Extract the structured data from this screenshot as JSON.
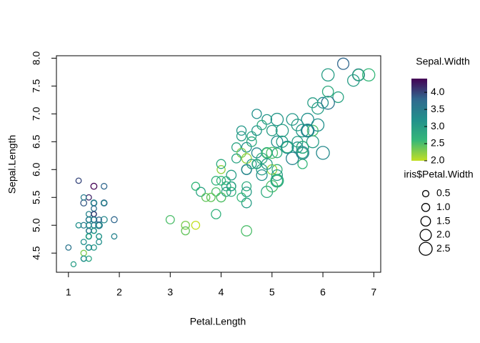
{
  "chart_data": {
    "type": "scatter",
    "xlabel": "Petal.Length",
    "ylabel": "Sepal.Length",
    "xlim": [
      0.764,
      7.136
    ],
    "ylim": [
      4.156,
      8.044
    ],
    "xticks": [
      1,
      2,
      3,
      4,
      5,
      6,
      7
    ],
    "yticks": [
      4.5,
      {
        "value": 5,
        "label": "5.0"
      },
      5.5,
      {
        "value": 6,
        "label": "6.0"
      },
      6.5,
      {
        "value": 7,
        "label": "7.0"
      },
      7.5,
      {
        "value": 8,
        "label": "8.0"
      }
    ],
    "x": [
      1.4,
      1.4,
      1.3,
      1.5,
      1.4,
      1.7,
      1.4,
      1.5,
      1.4,
      1.5,
      1.5,
      1.6,
      1.4,
      1.1,
      1.2,
      1.5,
      1.3,
      1.4,
      1.7,
      1.5,
      1.7,
      1.5,
      1.0,
      1.7,
      1.9,
      1.6,
      1.6,
      1.5,
      1.4,
      1.6,
      1.6,
      1.5,
      1.5,
      1.4,
      1.5,
      1.2,
      1.3,
      1.4,
      1.3,
      1.5,
      1.3,
      1.3,
      1.3,
      1.6,
      1.9,
      1.4,
      1.6,
      1.4,
      1.5,
      1.4,
      4.7,
      4.5,
      4.9,
      4.0,
      4.6,
      4.5,
      4.7,
      3.3,
      4.6,
      3.9,
      3.5,
      4.2,
      4.0,
      4.7,
      3.6,
      4.4,
      4.5,
      4.1,
      4.5,
      3.9,
      4.8,
      4.0,
      4.9,
      4.7,
      4.3,
      4.4,
      4.8,
      5.0,
      4.5,
      3.5,
      3.8,
      3.7,
      3.9,
      5.1,
      4.5,
      4.5,
      4.7,
      4.4,
      4.1,
      4.0,
      4.4,
      4.6,
      4.0,
      3.3,
      4.2,
      4.2,
      4.2,
      4.3,
      3.0,
      4.1,
      6.0,
      5.1,
      5.9,
      5.6,
      5.8,
      6.6,
      4.5,
      6.3,
      5.8,
      6.1,
      5.1,
      5.3,
      5.5,
      5.0,
      5.1,
      5.3,
      5.5,
      6.7,
      6.9,
      5.0,
      5.7,
      4.9,
      6.7,
      4.9,
      5.7,
      6.0,
      4.8,
      4.9,
      5.6,
      5.8,
      6.1,
      6.4,
      5.6,
      5.1,
      5.6,
      6.1,
      5.6,
      5.5,
      4.8,
      5.4,
      5.6,
      5.1,
      5.1,
      5.9,
      5.7,
      5.2,
      5.0,
      5.2,
      5.4,
      5.1
    ],
    "y": [
      5.1,
      4.9,
      4.7,
      4.6,
      5.0,
      5.4,
      4.6,
      5.0,
      4.4,
      4.9,
      5.4,
      4.8,
      4.8,
      4.3,
      5.8,
      5.7,
      5.4,
      5.1,
      5.7,
      5.1,
      5.4,
      5.1,
      4.6,
      5.1,
      4.8,
      5.0,
      5.0,
      5.2,
      5.2,
      4.7,
      4.8,
      5.4,
      5.2,
      5.5,
      4.9,
      5.0,
      5.5,
      4.9,
      4.4,
      5.1,
      5.0,
      4.5,
      4.4,
      5.0,
      5.1,
      4.8,
      5.1,
      4.6,
      5.3,
      5.0,
      7.0,
      6.4,
      6.9,
      5.5,
      6.5,
      5.7,
      6.3,
      4.9,
      6.6,
      5.2,
      5.0,
      5.9,
      6.0,
      6.1,
      5.6,
      6.7,
      5.6,
      5.8,
      6.2,
      5.6,
      5.9,
      6.1,
      6.3,
      6.1,
      6.4,
      6.6,
      6.8,
      6.7,
      6.0,
      5.7,
      5.5,
      5.5,
      5.8,
      6.0,
      5.4,
      6.0,
      6.7,
      6.3,
      5.6,
      5.5,
      5.5,
      6.1,
      5.8,
      5.0,
      5.6,
      5.7,
      5.7,
      6.2,
      5.1,
      5.7,
      6.3,
      5.8,
      7.1,
      6.3,
      6.5,
      7.6,
      4.9,
      7.3,
      6.7,
      7.2,
      6.5,
      6.4,
      6.8,
      5.7,
      5.8,
      6.4,
      6.5,
      7.7,
      7.7,
      6.0,
      6.9,
      5.6,
      7.7,
      6.3,
      6.7,
      7.2,
      6.2,
      6.1,
      6.4,
      7.2,
      7.4,
      7.9,
      6.4,
      6.3,
      6.1,
      7.7,
      6.3,
      6.4,
      6.0,
      6.9,
      6.7,
      6.9,
      5.8,
      6.8,
      6.7,
      6.7,
      6.3,
      6.5,
      6.2,
      5.9
    ],
    "color_values": [
      3.5,
      3.0,
      3.2,
      3.1,
      3.6,
      3.9,
      3.4,
      3.4,
      2.9,
      3.1,
      3.7,
      3.4,
      3.0,
      3.0,
      4.0,
      4.4,
      3.9,
      3.5,
      3.8,
      3.8,
      3.4,
      3.7,
      3.6,
      3.3,
      3.4,
      3.0,
      3.4,
      3.5,
      3.4,
      3.2,
      3.1,
      3.4,
      4.1,
      4.2,
      3.1,
      3.2,
      3.5,
      3.6,
      3.0,
      3.4,
      3.5,
      2.3,
      3.2,
      3.5,
      3.8,
      3.0,
      3.8,
      3.2,
      3.7,
      3.3,
      3.2,
      3.2,
      3.1,
      2.3,
      2.8,
      2.8,
      3.3,
      2.4,
      2.9,
      2.7,
      2.0,
      3.0,
      2.2,
      2.9,
      2.9,
      3.1,
      3.0,
      2.7,
      2.2,
      2.5,
      3.2,
      2.8,
      2.5,
      2.8,
      2.9,
      3.0,
      2.8,
      3.0,
      2.9,
      2.6,
      2.4,
      2.4,
      2.7,
      2.7,
      3.0,
      3.4,
      3.1,
      2.3,
      3.0,
      2.5,
      2.6,
      3.0,
      2.6,
      2.3,
      2.7,
      3.0,
      2.9,
      2.9,
      2.5,
      2.8,
      3.3,
      2.7,
      3.0,
      2.9,
      3.0,
      3.0,
      2.5,
      2.9,
      2.5,
      3.6,
      3.2,
      2.7,
      3.0,
      2.5,
      2.8,
      3.2,
      3.0,
      3.8,
      2.6,
      2.2,
      3.2,
      2.8,
      2.8,
      2.7,
      3.3,
      3.2,
      2.8,
      3.0,
      2.8,
      3.0,
      2.8,
      3.8,
      2.8,
      2.8,
      2.6,
      3.0,
      3.4,
      3.1,
      3.0,
      3.1,
      3.1,
      3.1,
      2.7,
      3.2,
      3.3,
      3.0,
      2.5,
      3.0,
      3.4,
      3.0
    ],
    "size_values": [
      0.2,
      0.2,
      0.2,
      0.2,
      0.2,
      0.4,
      0.3,
      0.2,
      0.2,
      0.1,
      0.2,
      0.2,
      0.1,
      0.1,
      0.2,
      0.4,
      0.4,
      0.3,
      0.3,
      0.3,
      0.2,
      0.4,
      0.2,
      0.5,
      0.2,
      0.2,
      0.4,
      0.2,
      0.2,
      0.2,
      0.2,
      0.4,
      0.1,
      0.2,
      0.2,
      0.2,
      0.2,
      0.1,
      0.2,
      0.2,
      0.3,
      0.3,
      0.2,
      0.6,
      0.4,
      0.3,
      0.2,
      0.2,
      0.2,
      0.2,
      1.4,
      1.5,
      1.5,
      1.3,
      1.5,
      1.3,
      1.6,
      1.0,
      1.3,
      1.4,
      1.0,
      1.5,
      1.0,
      1.4,
      1.3,
      1.4,
      1.5,
      1.0,
      1.5,
      1.1,
      1.8,
      1.3,
      1.5,
      1.2,
      1.3,
      1.4,
      1.4,
      1.7,
      1.5,
      1.0,
      1.1,
      1.0,
      1.2,
      1.6,
      1.5,
      1.6,
      1.5,
      1.3,
      1.3,
      1.3,
      1.2,
      1.4,
      1.2,
      1.0,
      1.3,
      1.2,
      1.3,
      1.3,
      1.1,
      1.3,
      2.5,
      1.9,
      2.1,
      1.8,
      2.2,
      2.1,
      1.7,
      1.8,
      1.8,
      2.5,
      2.0,
      1.9,
      2.1,
      2.0,
      2.4,
      2.3,
      1.8,
      2.2,
      2.3,
      1.5,
      2.3,
      2.0,
      2.0,
      1.8,
      2.1,
      1.8,
      1.8,
      1.8,
      2.1,
      1.6,
      1.9,
      2.0,
      2.2,
      1.5,
      1.4,
      2.3,
      2.4,
      1.8,
      1.8,
      2.1,
      2.4,
      2.3,
      1.9,
      2.3,
      2.5,
      2.3,
      1.9,
      2.0,
      2.3,
      1.8
    ],
    "color_legend_title": "Sepal.Width",
    "colorscale": [
      "#440154",
      "#31688E",
      "#21908C",
      "#35B779",
      "#C2DF23"
    ],
    "clim": [
      4.4,
      2.0
    ],
    "color_ticks": [
      {
        "value": 2,
        "label": "2.0"
      },
      2.5,
      {
        "value": 3,
        "label": "3.0"
      },
      3.5,
      {
        "value": 4,
        "label": "4.0"
      }
    ],
    "size_legend_title": "iris$Petal.Width",
    "size_legend": [
      0.5,
      {
        "value": 1,
        "label": "1.0"
      },
      1.5,
      {
        "value": 2,
        "label": "2.0"
      },
      2.5
    ]
  }
}
